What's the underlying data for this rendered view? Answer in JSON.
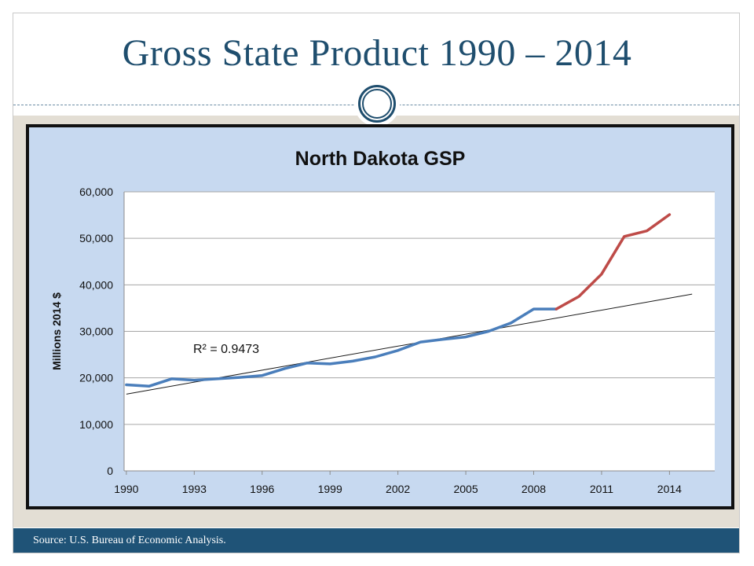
{
  "slide": {
    "title": "Gross State Product 1990 – 2014",
    "source": "Source: U.S. Bureau of Economic Analysis."
  },
  "colors": {
    "title": "#1f4e6e",
    "footer": "#1f5377",
    "chart_background": "#c7d9f0",
    "series_historical": "#4a7ebb",
    "series_recent": "#be4b48",
    "trendline": "#1a1a1a"
  },
  "chart_data": {
    "type": "line",
    "title": "North Dakota GSP",
    "xlabel": "",
    "ylabel": "Millions 2014 $",
    "ylim": [
      0,
      60000
    ],
    "yticks": [
      "0",
      "10,000",
      "20,000",
      "30,000",
      "40,000",
      "50,000",
      "60,000"
    ],
    "xticks": [
      "1990",
      "1993",
      "1996",
      "1999",
      "2002",
      "2005",
      "2008",
      "2011",
      "2014"
    ],
    "grid": true,
    "series": [
      {
        "color": "#4a7ebb",
        "x": [
          1990,
          1991,
          1992,
          1993,
          1994,
          1995,
          1996,
          1997,
          1998,
          1999,
          2000,
          2001,
          2002,
          2003,
          2004,
          2005,
          2006,
          2007,
          2008,
          2009
        ],
        "values": [
          18500,
          18200,
          19800,
          19500,
          19800,
          20100,
          20500,
          22000,
          23200,
          23000,
          23600,
          24500,
          25900,
          27700,
          28300,
          28800,
          30000,
          31800,
          34800,
          34800
        ]
      },
      {
        "color": "#be4b48",
        "x": [
          2009,
          2010,
          2011,
          2012,
          2013,
          2014
        ],
        "values": [
          34800,
          37500,
          42300,
          50400,
          51600,
          55100
        ]
      }
    ],
    "trendline": {
      "color": "#1a1a1a",
      "x": [
        1990,
        2015
      ],
      "values": [
        16500,
        38000
      ],
      "label": "R² = 0.9473"
    }
  }
}
